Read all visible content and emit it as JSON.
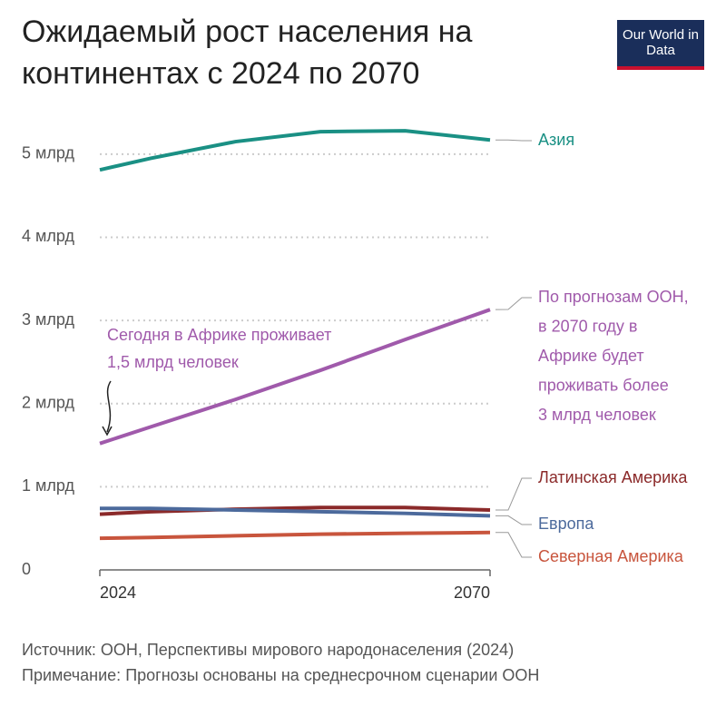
{
  "chart_data": {
    "type": "line",
    "title": "Ожидаемый рост населения на континентах с 2024 по 2070",
    "logo": "Our World in Data",
    "x": [
      2024,
      2030,
      2040,
      2050,
      2060,
      2070
    ],
    "xlim": [
      2024,
      2070
    ],
    "xticks": [
      2024,
      2070
    ],
    "ylim": [
      0,
      5.5
    ],
    "yticks": [
      0,
      {
        "value": 1,
        "label": "1 млрд"
      },
      {
        "value": 2,
        "label": "2 млрд"
      },
      {
        "value": 3,
        "label": "3 млрд"
      },
      {
        "value": 4,
        "label": "4 млрд"
      },
      {
        "value": 5,
        "label": "5 млрд"
      }
    ],
    "grid": true,
    "series": [
      {
        "name": "Азия",
        "color": "#1a9084",
        "values": [
          4.81,
          4.95,
          5.15,
          5.27,
          5.28,
          5.17
        ]
      },
      {
        "color": "#a05aab",
        "values": [
          1.52,
          1.72,
          2.05,
          2.4,
          2.77,
          3.13
        ]
      },
      {
        "name": "Латинская Америка",
        "color": "#8b2a2a",
        "values": [
          0.67,
          0.7,
          0.73,
          0.75,
          0.75,
          0.72
        ]
      },
      {
        "name": "Европа",
        "color": "#4c6a9c",
        "values": [
          0.74,
          0.74,
          0.72,
          0.7,
          0.68,
          0.65
        ]
      },
      {
        "name": "Северная Америка",
        "color": "#c8553d",
        "values": [
          0.38,
          0.39,
          0.41,
          0.43,
          0.44,
          0.45
        ]
      }
    ],
    "annotations": [
      [
        "Сегодня в Африке проживает",
        "1,5 млрд человек"
      ],
      [
        "По прогнозам ООН,",
        "в 2070 году в",
        "Африке будет",
        "проживать более",
        "3 млрд человек"
      ]
    ],
    "source": "Источник: ООН, Перспективы мирового народонаселения (2024)",
    "note": "Примечание: Прогнозы основаны на среднесрочном сценарии ООН"
  }
}
